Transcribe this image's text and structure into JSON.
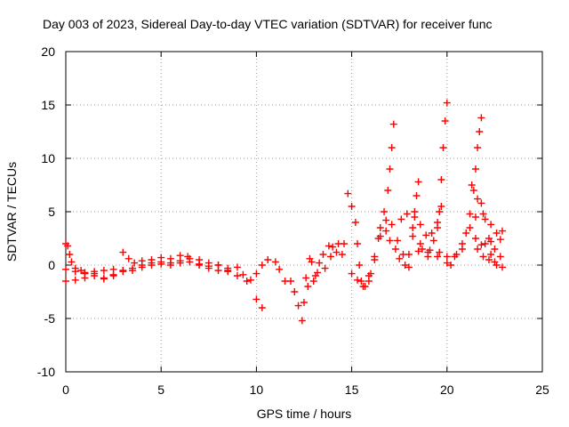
{
  "chart_data": {
    "type": "scatter",
    "title": "Day 003 of 2023, Sidereal Day-to-day VTEC variation (SDTVAR) for receiver func",
    "xlabel": "GPS time / hours",
    "ylabel": "SDTVAR / TECUs",
    "xlim": [
      0,
      25
    ],
    "ylim": [
      -10,
      20
    ],
    "xticks": [
      0,
      5,
      10,
      15,
      20,
      25
    ],
    "yticks": [
      -10,
      -5,
      0,
      5,
      10,
      15,
      20
    ],
    "grid": true,
    "marker": "+",
    "series": [
      {
        "name": "SDTVAR",
        "color": "#ff0000",
        "points": [
          [
            0.0,
            2.0
          ],
          [
            0.1,
            1.8
          ],
          [
            0.2,
            1.0
          ],
          [
            0.3,
            0.3
          ],
          [
            0.5,
            -0.3
          ],
          [
            0.8,
            -0.5
          ],
          [
            1.0,
            -0.7
          ],
          [
            1.5,
            -0.8
          ],
          [
            2.0,
            -1.2
          ],
          [
            2.5,
            -0.9
          ],
          [
            3.0,
            -0.6
          ],
          [
            3.5,
            -0.3
          ],
          [
            4.0,
            0.0
          ],
          [
            4.5,
            0.2
          ],
          [
            5.0,
            0.3
          ],
          [
            5.5,
            0.2
          ],
          [
            6.0,
            0.4
          ],
          [
            6.5,
            0.6
          ],
          [
            7.0,
            0.1
          ],
          [
            7.5,
            -0.1
          ],
          [
            8.0,
            0.0
          ],
          [
            8.5,
            -0.3
          ],
          [
            9.0,
            -0.2
          ],
          [
            9.5,
            -1.5
          ],
          [
            10.0,
            -3.2
          ],
          [
            10.3,
            -4.0
          ],
          [
            0.0,
            -1.5
          ],
          [
            0.5,
            -1.4
          ],
          [
            1.0,
            -1.2
          ],
          [
            1.5,
            -1.0
          ],
          [
            2.0,
            -1.3
          ],
          [
            2.5,
            -1.0
          ],
          [
            3.0,
            -0.5
          ],
          [
            3.5,
            -0.5
          ],
          [
            4.0,
            -0.2
          ],
          [
            4.5,
            0.0
          ],
          [
            5.0,
            0.1
          ],
          [
            5.5,
            0.0
          ],
          [
            6.0,
            0.2
          ],
          [
            6.5,
            0.3
          ],
          [
            7.0,
            0.0
          ],
          [
            7.5,
            -0.3
          ],
          [
            8.0,
            -0.5
          ],
          [
            8.5,
            -0.6
          ],
          [
            0.0,
            -0.4
          ],
          [
            0.5,
            -0.6
          ],
          [
            1.0,
            -0.8
          ],
          [
            1.5,
            -0.6
          ],
          [
            2.0,
            -0.5
          ],
          [
            2.5,
            -0.4
          ],
          [
            3.0,
            1.2
          ],
          [
            3.3,
            0.6
          ],
          [
            3.6,
            0.2
          ],
          [
            4.0,
            0.4
          ],
          [
            4.5,
            0.5
          ],
          [
            5.0,
            0.7
          ],
          [
            5.5,
            0.6
          ],
          [
            6.0,
            0.9
          ],
          [
            6.4,
            0.8
          ],
          [
            7.0,
            0.5
          ],
          [
            7.5,
            0.2
          ],
          [
            8.0,
            0.0
          ],
          [
            8.5,
            -0.5
          ],
          [
            9.0,
            -1.0
          ],
          [
            9.3,
            -0.9
          ],
          [
            9.7,
            -1.4
          ],
          [
            10.0,
            -0.8
          ],
          [
            10.3,
            0.0
          ],
          [
            10.6,
            0.5
          ],
          [
            11.0,
            0.3
          ],
          [
            11.2,
            -0.4
          ],
          [
            11.5,
            -1.5
          ],
          [
            11.8,
            -1.5
          ],
          [
            12.0,
            -2.5
          ],
          [
            12.2,
            -3.8
          ],
          [
            12.4,
            -5.2
          ],
          [
            12.5,
            -3.5
          ],
          [
            12.7,
            -2.0
          ],
          [
            13.0,
            -1.5
          ],
          [
            12.6,
            -1.2
          ],
          [
            12.9,
            0.3
          ],
          [
            13.2,
            -0.7
          ],
          [
            13.5,
            1.0
          ],
          [
            13.8,
            1.8
          ],
          [
            14.0,
            1.7
          ],
          [
            14.3,
            2.0
          ],
          [
            14.6,
            2.0
          ],
          [
            12.8,
            0.6
          ],
          [
            13.1,
            -1.0
          ],
          [
            13.3,
            0.2
          ],
          [
            13.6,
            -0.3
          ],
          [
            13.9,
            0.8
          ],
          [
            14.2,
            1.2
          ],
          [
            14.5,
            1.0
          ],
          [
            14.8,
            6.7
          ],
          [
            15.0,
            5.5
          ],
          [
            15.2,
            4.0
          ],
          [
            15.3,
            2.0
          ],
          [
            15.4,
            0.0
          ],
          [
            15.5,
            -1.5
          ],
          [
            15.7,
            -2.0
          ],
          [
            15.9,
            -1.5
          ],
          [
            16.0,
            -0.8
          ],
          [
            16.2,
            0.5
          ],
          [
            16.4,
            2.5
          ],
          [
            16.5,
            3.5
          ],
          [
            16.7,
            5.0
          ],
          [
            16.9,
            7.0
          ],
          [
            17.0,
            9.0
          ],
          [
            17.1,
            11.0
          ],
          [
            17.2,
            13.2
          ],
          [
            15.0,
            -0.8
          ],
          [
            15.3,
            -1.4
          ],
          [
            15.6,
            -2.0
          ],
          [
            15.9,
            -1.0
          ],
          [
            16.2,
            0.8
          ],
          [
            16.5,
            2.7
          ],
          [
            16.8,
            3.2
          ],
          [
            17.0,
            2.3
          ],
          [
            17.3,
            1.5
          ],
          [
            17.5,
            0.6
          ],
          [
            17.8,
            0.0
          ],
          [
            18.0,
            -0.2
          ],
          [
            16.8,
            4.2
          ],
          [
            17.1,
            3.8
          ],
          [
            17.4,
            2.3
          ],
          [
            17.7,
            1.0
          ],
          [
            18.0,
            1.0
          ],
          [
            18.2,
            2.7
          ],
          [
            18.3,
            4.5
          ],
          [
            18.4,
            6.5
          ],
          [
            18.5,
            7.8
          ],
          [
            17.6,
            4.3
          ],
          [
            17.9,
            4.8
          ],
          [
            18.2,
            3.5
          ],
          [
            18.6,
            2.0
          ],
          [
            19.0,
            1.2
          ],
          [
            19.3,
            2.3
          ],
          [
            19.5,
            3.5
          ],
          [
            19.6,
            5.0
          ],
          [
            19.7,
            8.0
          ],
          [
            19.8,
            11.0
          ],
          [
            19.9,
            13.5
          ],
          [
            20.0,
            15.2
          ],
          [
            18.3,
            5.0
          ],
          [
            18.6,
            3.8
          ],
          [
            18.9,
            2.8
          ],
          [
            19.2,
            3.0
          ],
          [
            19.5,
            4.0
          ],
          [
            19.7,
            5.5
          ],
          [
            18.5,
            1.3
          ],
          [
            19.0,
            0.8
          ],
          [
            19.5,
            0.8
          ],
          [
            20.0,
            0.2
          ],
          [
            20.2,
            0.0
          ],
          [
            20.5,
            1.0
          ],
          [
            20.8,
            2.0
          ],
          [
            21.0,
            3.0
          ],
          [
            21.2,
            4.8
          ],
          [
            21.4,
            7.0
          ],
          [
            21.5,
            9.0
          ],
          [
            21.6,
            11.0
          ],
          [
            21.7,
            12.5
          ],
          [
            21.8,
            13.8
          ],
          [
            18.7,
            1.5
          ],
          [
            19.1,
            1.4
          ],
          [
            19.6,
            1.2
          ],
          [
            20.0,
            0.8
          ],
          [
            20.4,
            0.8
          ],
          [
            20.8,
            1.5
          ],
          [
            21.2,
            3.5
          ],
          [
            21.5,
            4.5
          ],
          [
            21.8,
            5.8
          ],
          [
            22.0,
            4.3
          ],
          [
            22.3,
            3.8
          ],
          [
            21.5,
            2.5
          ],
          [
            21.8,
            1.9
          ],
          [
            22.0,
            2.0
          ],
          [
            22.3,
            2.2
          ],
          [
            22.6,
            3.0
          ],
          [
            22.9,
            3.2
          ],
          [
            21.3,
            7.5
          ],
          [
            21.6,
            6.2
          ],
          [
            21.9,
            4.8
          ],
          [
            22.2,
            2.5
          ],
          [
            22.5,
            1.5
          ],
          [
            22.8,
            2.4
          ],
          [
            21.6,
            1.5
          ],
          [
            21.9,
            0.8
          ],
          [
            22.2,
            0.5
          ],
          [
            22.5,
            0.3
          ],
          [
            22.8,
            0.8
          ],
          [
            22.3,
            1.0
          ],
          [
            22.6,
            0.0
          ],
          [
            22.9,
            -0.2
          ]
        ]
      }
    ]
  }
}
